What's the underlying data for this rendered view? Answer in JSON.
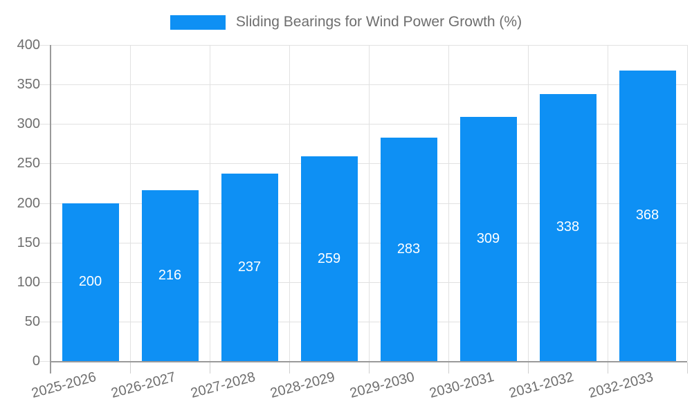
{
  "chart_data": {
    "type": "bar",
    "title": "Sliding Bearings for Wind Power Growth (%)",
    "legend": {
      "position": "top-center",
      "entries": [
        {
          "label": "Sliding Bearings for Wind Power Growth (%)",
          "swatch_color": "#0e90f4"
        }
      ]
    },
    "categories": [
      "2025-2026",
      "2026-2027",
      "2027-2028",
      "2028-2029",
      "2029-2030",
      "2030-2031",
      "2031-2032",
      "2032-2033"
    ],
    "series": [
      {
        "name": "Sliding Bearings for Wind Power Growth (%)",
        "values": [
          200,
          216,
          237,
          259,
          283,
          309,
          338,
          368
        ]
      }
    ],
    "value_labels": {
      "visible": true,
      "placement": "inside-center",
      "color": "#ffffff"
    },
    "xlabel": "",
    "ylabel": "",
    "ylim": [
      0,
      400
    ],
    "yticks": [
      0,
      50,
      100,
      150,
      200,
      250,
      300,
      350,
      400
    ],
    "grid": true,
    "x_tick_label_rotation_deg": -15,
    "colors": {
      "bar": "#0e90f4",
      "grid": "#e1e1e1",
      "axis": "#9a9a9a",
      "axis_minor_tick": "#cfcfcf",
      "tick_text": "#6e6e6e",
      "title_text": "#6e6e6e",
      "value_label_text": "#ffffff",
      "background": "#ffffff"
    }
  }
}
